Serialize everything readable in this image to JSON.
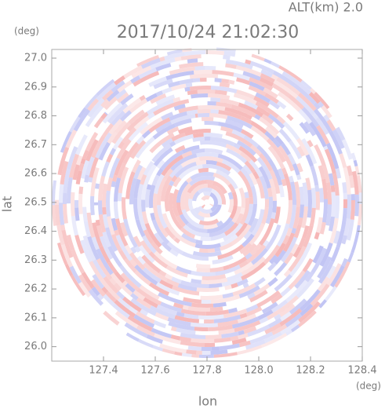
{
  "chart_data": {
    "type": "radar-ppi",
    "title": "2017/10/24 21:02:30",
    "subtitle": "ALT(km) 2.0",
    "x_label": "lon",
    "y_label": "lat",
    "x_unit": "(deg)",
    "y_unit": "(deg)",
    "xlim": [
      127.2,
      128.4
    ],
    "ylim": [
      25.95,
      27.03
    ],
    "xticks": [
      127.4,
      127.6,
      127.8,
      {
        "value": 128.0,
        "label": "128.0"
      },
      128.2,
      128.4
    ],
    "yticks": [
      {
        "value": 26.0,
        "label": "26.0"
      },
      26.1,
      26.2,
      26.3,
      26.4,
      26.5,
      26.6,
      26.7,
      26.8,
      26.9,
      {
        "value": 27.0,
        "label": "27.0"
      }
    ],
    "colors": [
      "#f4a9a9",
      "#b4b8f2"
    ]
  }
}
